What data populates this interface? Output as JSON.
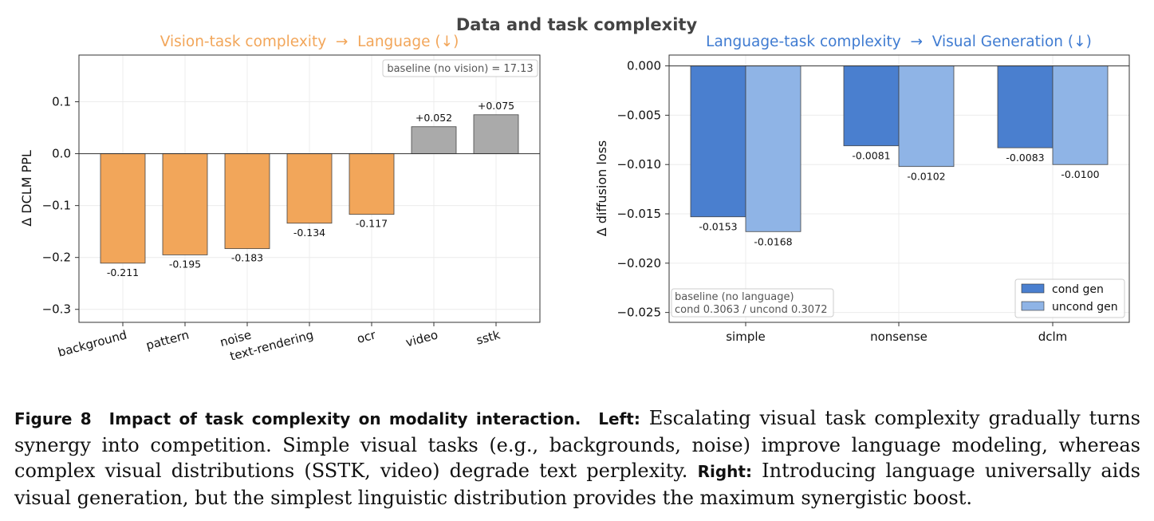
{
  "figure": {
    "suptitle": "Data and task complexity",
    "caption": {
      "figure_label": "Figure 8",
      "bold_title": "Impact of task complexity on modality interaction.",
      "left_label": "Left:",
      "left_text": "Escalating visual task complexity gradually turns synergy into competition. Simple visual tasks (e.g., backgrounds, noise) improve language modeling, whereas complex visual distributions (SSTK, video) degrade text perplexity.",
      "right_label": "Right:",
      "right_text": "Introducing language universally aids visual generation, but the simplest linguistic distribution provides the maximum synergistic boost."
    }
  },
  "colors": {
    "orange": "#f2a65a",
    "gray": "#aaaaaa",
    "cond": "#4a7fcf",
    "uncond": "#8fb4e6",
    "left_title": "#f2a65a",
    "right_title": "#3f7bd1"
  },
  "chart_data": [
    {
      "type": "bar",
      "title": "Vision-task complexity  →  Language (↓)",
      "xlabel": "",
      "ylabel": "Δ DCLM PPL",
      "categories": [
        "background",
        "pattern",
        "noise",
        "text-rendering",
        "ocr",
        "video",
        "sstk"
      ],
      "values": [
        -0.211,
        -0.195,
        -0.183,
        -0.134,
        -0.117,
        0.052,
        0.075
      ],
      "labels": [
        "-0.211",
        "-0.195",
        "-0.183",
        "-0.134",
        "-0.117",
        "+0.052",
        "+0.075"
      ],
      "ylim": [
        -0.325,
        0.19
      ],
      "yticks": [
        -0.3,
        -0.2,
        -0.1,
        0.0,
        0.1
      ],
      "ytick_labels": [
        "−0.3",
        "−0.2",
        "−0.1",
        "0.0",
        "0.1"
      ],
      "annotation": "baseline (no vision) = 17.13",
      "grid": true
    },
    {
      "type": "bar",
      "title": "Language-task complexity  →  Visual Generation (↓)",
      "xlabel": "",
      "ylabel": "Δ diffusion loss",
      "categories": [
        "simple",
        "nonsense",
        "dclm"
      ],
      "series": [
        {
          "name": "cond gen",
          "values": [
            -0.0153,
            -0.0081,
            -0.0083
          ],
          "labels": [
            "-0.0153",
            "-0.0081",
            "-0.0083"
          ]
        },
        {
          "name": "uncond gen",
          "values": [
            -0.0168,
            -0.0102,
            -0.01
          ],
          "labels": [
            "-0.0168",
            "-0.0102",
            "-0.0100"
          ]
        }
      ],
      "ylim": [
        -0.026,
        0.0011
      ],
      "yticks": [
        0.0,
        -0.005,
        -0.01,
        -0.015,
        -0.02,
        -0.025
      ],
      "ytick_labels": [
        "0.000",
        "−0.005",
        "−0.010",
        "−0.015",
        "−0.020",
        "−0.025"
      ],
      "annotation_lines": [
        "baseline (no language)",
        "cond 0.3063 / uncond 0.3072"
      ],
      "legend": "lower-right",
      "grid": true
    }
  ]
}
